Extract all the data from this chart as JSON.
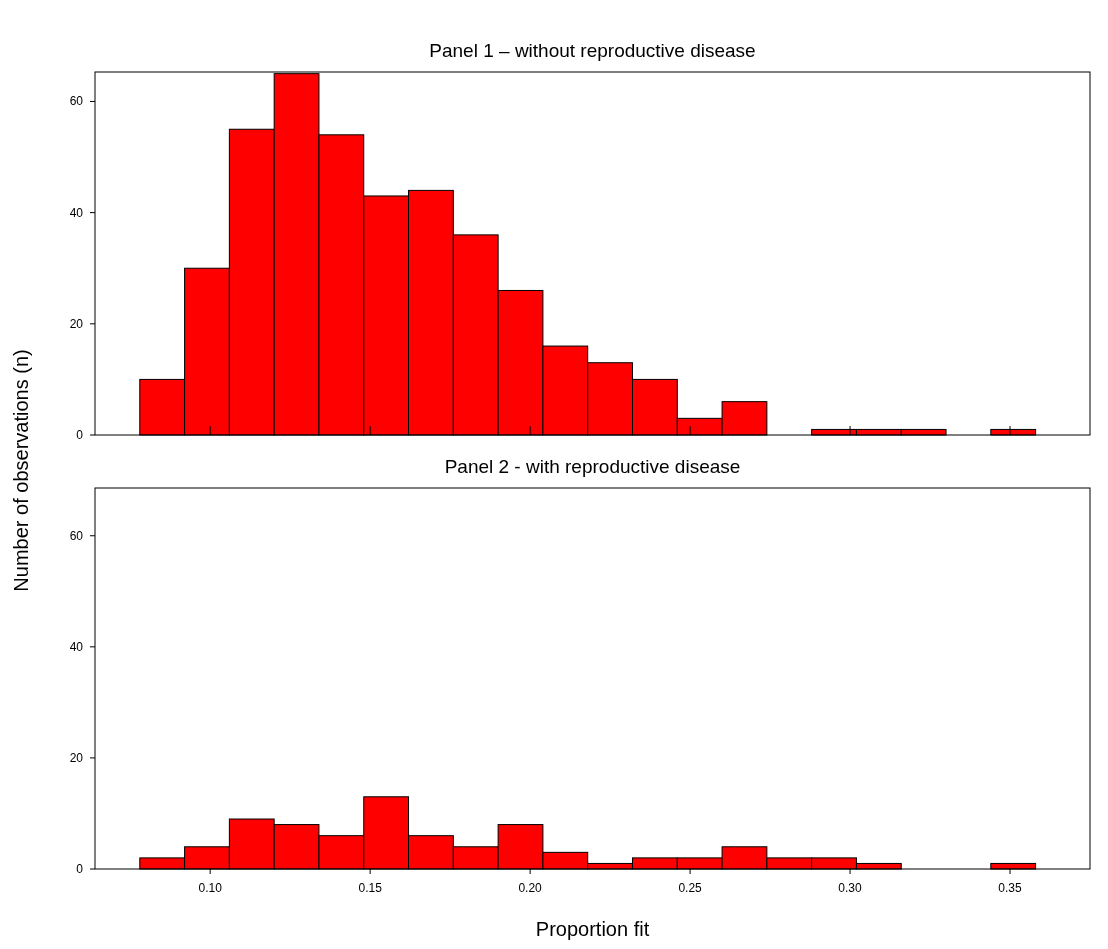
{
  "chart_data": [
    {
      "type": "histogram",
      "title": "Panel 1 – without reproductive disease",
      "ylabel": "Number of observations (n)",
      "bins": [
        0.078,
        0.092,
        0.106,
        0.12,
        0.134,
        0.148,
        0.162,
        0.176,
        0.19,
        0.204,
        0.218,
        0.232,
        0.246,
        0.26,
        0.274,
        0.288,
        0.302,
        0.316,
        0.33,
        0.344,
        0.358
      ],
      "values": [
        10,
        30,
        55,
        65,
        54,
        43,
        44,
        36,
        26,
        16,
        13,
        10,
        3,
        6,
        0,
        1,
        1,
        1,
        0,
        1
      ],
      "color": "#ff0000",
      "xlim": [
        0.064,
        0.375
      ],
      "xticks": [
        0.1,
        0.15,
        0.2,
        0.25,
        0.3,
        0.35
      ],
      "ylim": [
        0,
        65.3
      ],
      "yticks": [
        0,
        20,
        40,
        60
      ],
      "tick_labels": "y",
      "grid": false
    },
    {
      "type": "histogram",
      "title": "Panel 2 - with reproductive disease",
      "xlabel": "Proportion fit",
      "bins": [
        0.078,
        0.092,
        0.106,
        0.12,
        0.134,
        0.148,
        0.162,
        0.176,
        0.19,
        0.204,
        0.218,
        0.232,
        0.246,
        0.26,
        0.274,
        0.288,
        0.302,
        0.316,
        0.33,
        0.344,
        0.358
      ],
      "values": [
        2,
        4,
        9,
        8,
        6,
        13,
        6,
        4,
        8,
        3,
        1,
        2,
        2,
        4,
        2,
        2,
        1,
        0,
        0,
        1
      ],
      "color": "#ff0000",
      "xlim": [
        0.064,
        0.375
      ],
      "xticks": [
        {
          "value": 0.1,
          "label": "0.10"
        },
        {
          "value": 0.15,
          "label": "0.15"
        },
        {
          "value": 0.2,
          "label": "0.20"
        },
        {
          "value": 0.25,
          "label": "0.25"
        },
        {
          "value": 0.3,
          "label": "0.30"
        },
        {
          "value": 0.35,
          "label": "0.35"
        }
      ],
      "ylim": [
        0,
        68.6
      ],
      "yticks": [
        0,
        20,
        40,
        60
      ],
      "grid": false
    }
  ]
}
